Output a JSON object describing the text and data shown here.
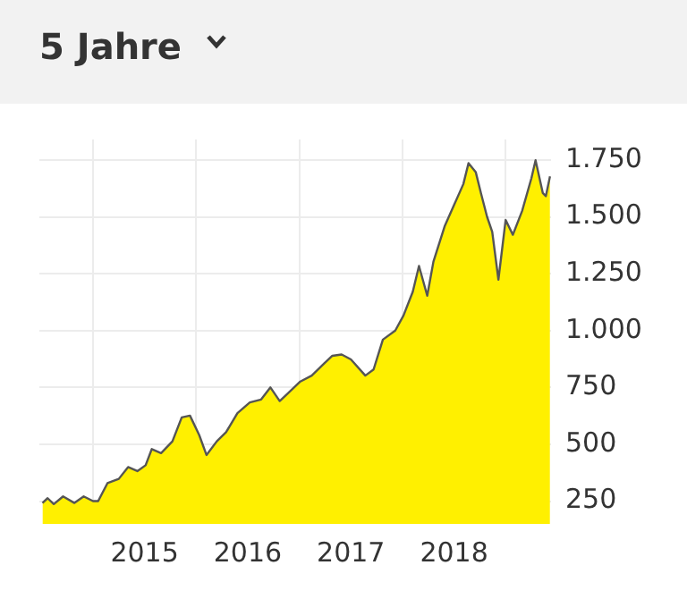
{
  "chart_data": {
    "type": "area",
    "title": "5 Jahre",
    "x": [
      2014.51,
      2014.56,
      2014.62,
      2014.71,
      2014.82,
      2014.91,
      2015.0,
      2015.05,
      2015.14,
      2015.25,
      2015.34,
      2015.43,
      2015.51,
      2015.57,
      2015.66,
      2015.77,
      2015.86,
      2015.94,
      2016.03,
      2016.1,
      2016.2,
      2016.29,
      2016.4,
      2016.52,
      2016.63,
      2016.72,
      2016.81,
      2016.89,
      2017.01,
      2017.12,
      2017.24,
      2017.32,
      2017.41,
      2017.5,
      2017.64,
      2017.72,
      2017.81,
      2017.93,
      2018.01,
      2018.1,
      2018.16,
      2018.24,
      2018.3,
      2018.41,
      2018.5,
      2018.59,
      2018.64,
      2018.71,
      2018.76,
      2018.82,
      2018.87,
      2018.93,
      2019.0,
      2019.07,
      2019.16,
      2019.25,
      2019.29,
      2019.36,
      2019.39,
      2019.43
    ],
    "series": [
      {
        "color": "#fff000",
        "values": [
          242,
          263,
          237,
          271,
          242,
          271,
          250,
          250,
          329,
          348,
          400,
          382,
          408,
          479,
          461,
          513,
          618,
          626,
          540,
          453,
          513,
          553,
          637,
          684,
          697,
          750,
          690,
          724,
          776,
          802,
          855,
          889,
          895,
          873,
          802,
          829,
          960,
          1000,
          1066,
          1171,
          1284,
          1153,
          1303,
          1460,
          1552,
          1644,
          1736,
          1697,
          1605,
          1500,
          1434,
          1224,
          1486,
          1421,
          1526,
          1670,
          1749,
          1605,
          1591,
          1678
        ]
      }
    ],
    "xlim": [
      2014.48,
      2019.44
    ],
    "xticks": [
      {
        "value": 2015,
        "label": null
      },
      {
        "value": 2015.5,
        "label": "2015"
      },
      {
        "value": 2016,
        "label": null
      },
      {
        "value": 2016.5,
        "label": "2016"
      },
      {
        "value": 2017,
        "label": null
      },
      {
        "value": 2017.5,
        "label": "2017"
      },
      {
        "value": 2018,
        "label": null
      },
      {
        "value": 2018.5,
        "label": "2018"
      },
      {
        "value": 2019,
        "label": null
      }
    ],
    "ylim": [
      150,
      1840
    ],
    "yticks": [
      250,
      500,
      750,
      {
        "value": 1000,
        "label": "1.000"
      },
      {
        "value": 1250,
        "label": "1.250"
      },
      {
        "value": 1500,
        "label": "1.500"
      },
      {
        "value": 1750,
        "label": "1.750"
      }
    ],
    "grid": true,
    "legend": false,
    "marker": "none",
    "line_style": "solid"
  }
}
